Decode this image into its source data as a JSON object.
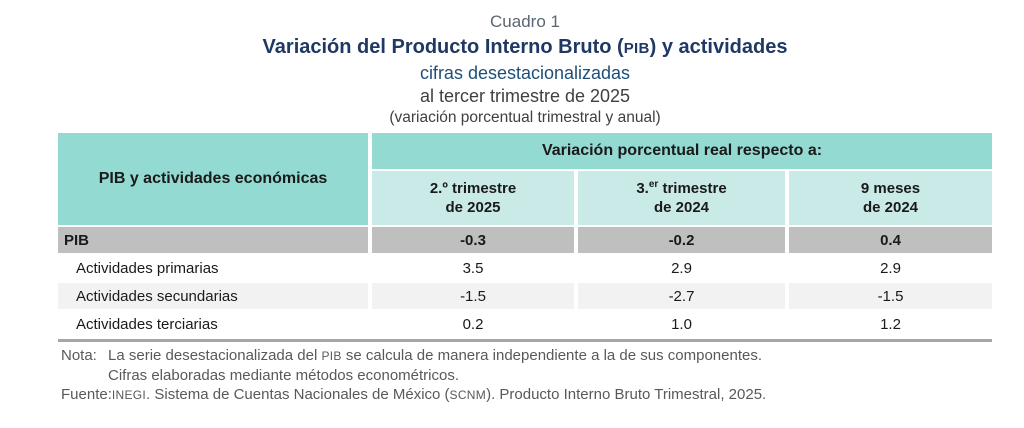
{
  "colors": {
    "header_teal": "#93dad2",
    "subheader_teal": "#c9eae6",
    "pib_row_gray": "#bfbfbf",
    "alt_row_gray": "#f2f2f2",
    "title_navy": "#1f3864",
    "subtitle_blue": "#1f4e79",
    "note_gray": "#595959",
    "bottom_rule_gray": "#a6a6a6"
  },
  "header": {
    "cuadro_label": "Cuadro 1",
    "title_pre": "Variación del Producto Interno Bruto (",
    "title_acronym": "PIB",
    "title_post": ") y actividades",
    "subtitle_1": "cifras desestacionalizadas",
    "subtitle_2": "al tercer trimestre de 2025",
    "subtitle_3": "(variación porcentual trimestral y anual)"
  },
  "table": {
    "stub_header": "PIB y actividades económicas",
    "group_header": "Variación porcentual real respecto a:",
    "columns": [
      {
        "line1_pre": "2.º",
        "line1_sup": "",
        "line1_post": " trimestre",
        "line2": "de 2025"
      },
      {
        "line1_pre": "3.",
        "line1_sup": "er",
        "line1_post": " trimestre",
        "line2": "de 2024"
      },
      {
        "line1_pre": "9 meses",
        "line1_sup": "",
        "line1_post": "",
        "line2": "de 2024"
      }
    ],
    "rows": [
      {
        "label": "PIB",
        "values": [
          "-0.3",
          "-0.2",
          "0.4"
        ]
      },
      {
        "label": "Actividades primarias",
        "values": [
          "3.5",
          "2.9",
          "2.9"
        ]
      },
      {
        "label": "Actividades secundarias",
        "values": [
          "-1.5",
          "-2.7",
          "-1.5"
        ]
      },
      {
        "label": "Actividades terciarias",
        "values": [
          "0.2",
          "1.0",
          "1.2"
        ]
      }
    ]
  },
  "notes": {
    "nota_label": "Nota:",
    "line1_pre": "La serie desestacionalizada del ",
    "line1_acronym": "PIB",
    "line1_post": " se calcula de manera independiente a la de sus componentes.",
    "line2": "Cifras elaboradas mediante métodos econométricos.",
    "fuente_label": "Fuente:",
    "fuente_acronym1": "INEGI",
    "fuente_mid": ". Sistema de Cuentas Nacionales de México (",
    "fuente_acronym2": "SCNM",
    "fuente_post": "). Producto Interno Bruto Trimestral, 2025."
  }
}
